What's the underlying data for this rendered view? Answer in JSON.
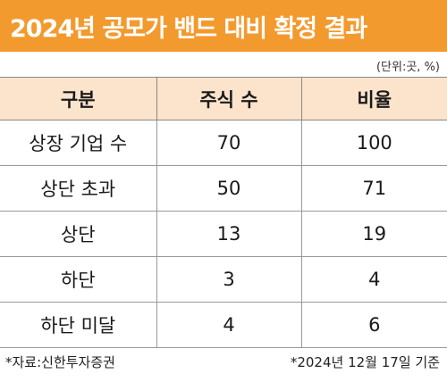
{
  "title": "2024년 공모가 밴드 대비 확정 결과",
  "unit_note": "(단위:곳, %)",
  "table": {
    "headers": [
      "구분",
      "주식 수",
      "비율"
    ],
    "rows": [
      [
        "상장 기업 수",
        "70",
        "100"
      ],
      [
        "상단 초과",
        "50",
        "71"
      ],
      [
        "상단",
        "13",
        "19"
      ],
      [
        "하단",
        "3",
        "4"
      ],
      [
        "하단 미달",
        "4",
        "6"
      ]
    ]
  },
  "footer": {
    "source": "*자료:신한투자증권",
    "date_note": "*2024년 12월 17일 기준"
  },
  "colors": {
    "title_bar": "#f39a2e",
    "header_row": "#fbe3cc"
  }
}
